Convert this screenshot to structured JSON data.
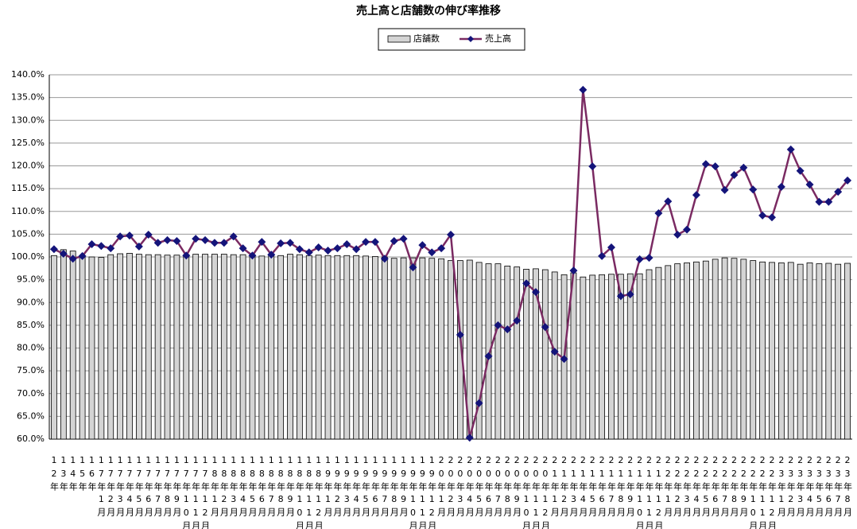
{
  "chart_data": {
    "type": "bar-line",
    "title": "売上高と店舗数の伸び率推移",
    "categories": [
      "12年",
      "13年",
      "14年",
      "15年",
      "16年",
      "17年1月",
      "17年2月",
      "17年3月",
      "17年4月",
      "17年5月",
      "17年6月",
      "17年7月",
      "17年8月",
      "17年9月",
      "17年10月",
      "17年11月",
      "17年12月",
      "18年1月",
      "18年2月",
      "18年3月",
      "18年4月",
      "18年5月",
      "18年6月",
      "18年7月",
      "18年8月",
      "18年9月",
      "18年10月",
      "18年11月",
      "18年12月",
      "19年1月",
      "19年2月",
      "19年3月",
      "19年4月",
      "19年5月",
      "19年6月",
      "19年7月",
      "19年8月",
      "19年9月",
      "19年10月",
      "19年11月",
      "19年12月",
      "20年1月",
      "20年2月",
      "20年3月",
      "20年4月",
      "20年5月",
      "20年6月",
      "20年7月",
      "20年8月",
      "20年9月",
      "20年10月",
      "20年11月",
      "20年12月",
      "21年1月",
      "21年2月",
      "21年3月",
      "21年4月",
      "21年5月",
      "21年6月",
      "21年7月",
      "21年8月",
      "21年9月",
      "21年10月",
      "21年11月",
      "21年12月",
      "22年1月",
      "22年2月",
      "22年3月",
      "22年4月",
      "22年5月",
      "22年6月",
      "22年7月",
      "22年8月",
      "22年9月",
      "22年10月",
      "22年11月",
      "22年12月",
      "23年1月",
      "23年2月",
      "23年3月",
      "23年4月",
      "23年5月",
      "23年6月",
      "23年7月",
      "23年8月"
    ],
    "series": [
      {
        "name": "店舗数",
        "kind": "bar",
        "color": "#d4d4d4",
        "values": [
          100.3,
          101.6,
          101.3,
          100.3,
          100.0,
          99.9,
          100.5,
          100.7,
          100.8,
          100.6,
          100.5,
          100.5,
          100.4,
          100.4,
          100.5,
          100.6,
          100.6,
          100.6,
          100.6,
          100.5,
          100.5,
          100.4,
          100.2,
          100.3,
          100.3,
          100.6,
          100.5,
          100.3,
          100.4,
          100.3,
          100.3,
          100.3,
          100.3,
          100.2,
          100.1,
          100.0,
          99.7,
          99.8,
          99.8,
          99.8,
          99.7,
          99.6,
          99.2,
          99.2,
          99.3,
          98.8,
          98.5,
          98.5,
          98.0,
          97.8,
          97.3,
          97.4,
          97.2,
          96.7,
          96.1,
          96.5,
          95.6,
          96.0,
          96.1,
          96.2,
          96.2,
          96.3,
          96.3,
          97.2,
          97.7,
          98.1,
          98.5,
          98.7,
          98.9,
          99.1,
          99.5,
          99.8,
          99.7,
          99.5,
          99.2,
          98.9,
          98.8,
          98.7,
          98.8,
          98.4,
          98.7,
          98.5,
          98.6,
          98.4,
          98.6
        ]
      },
      {
        "name": "売上高",
        "kind": "line",
        "color": "#7a2a62",
        "marker_color": "#14147a",
        "values": [
          101.7,
          100.7,
          99.6,
          100.2,
          102.8,
          102.4,
          101.9,
          104.5,
          104.7,
          102.3,
          104.9,
          103.1,
          103.7,
          103.5,
          100.3,
          104.0,
          103.7,
          103.1,
          103.1,
          104.5,
          101.9,
          100.3,
          103.3,
          100.5,
          103.0,
          103.1,
          101.7,
          101.0,
          102.1,
          101.4,
          101.9,
          102.8,
          101.7,
          103.3,
          103.3,
          99.6,
          103.5,
          104.0,
          97.7,
          102.6,
          101.0,
          101.9,
          104.9,
          82.9,
          60.3,
          67.9,
          78.2,
          85.0,
          84.1,
          86.0,
          94.2,
          92.3,
          84.6,
          79.2,
          77.6,
          97.0,
          136.7,
          119.9,
          100.2,
          102.1,
          91.4,
          91.8,
          99.5,
          99.8,
          109.6,
          112.2,
          104.9,
          106.0,
          113.6,
          120.4,
          119.9,
          114.7,
          118.0,
          119.6,
          114.8,
          109.1,
          108.7,
          115.4,
          123.6,
          118.9,
          115.9,
          112.1,
          112.1,
          114.3,
          116.8
        ]
      }
    ],
    "ylim": [
      60,
      140
    ],
    "yticks": [
      {
        "value": 60,
        "label": "60.0%"
      },
      {
        "value": 65,
        "label": "65.0%"
      },
      {
        "value": 70,
        "label": "70.0%"
      },
      {
        "value": 75,
        "label": "75.0%"
      },
      {
        "value": 80,
        "label": "80.0%"
      },
      {
        "value": 85,
        "label": "85.0%"
      },
      {
        "value": 90,
        "label": "90.0%"
      },
      {
        "value": 95,
        "label": "95.0%"
      },
      {
        "value": 100,
        "label": "100.0%"
      },
      {
        "value": 105,
        "label": "105.0%"
      },
      {
        "value": 110,
        "label": "110.0%"
      },
      {
        "value": 115,
        "label": "115.0%"
      },
      {
        "value": 120,
        "label": "120.0%"
      },
      {
        "value": 125,
        "label": "125.0%"
      },
      {
        "value": 130,
        "label": "130.0%"
      },
      {
        "value": 135,
        "label": "135.0%"
      },
      {
        "value": 140,
        "label": "140.0%"
      }
    ],
    "grid": true,
    "legend": "top"
  }
}
